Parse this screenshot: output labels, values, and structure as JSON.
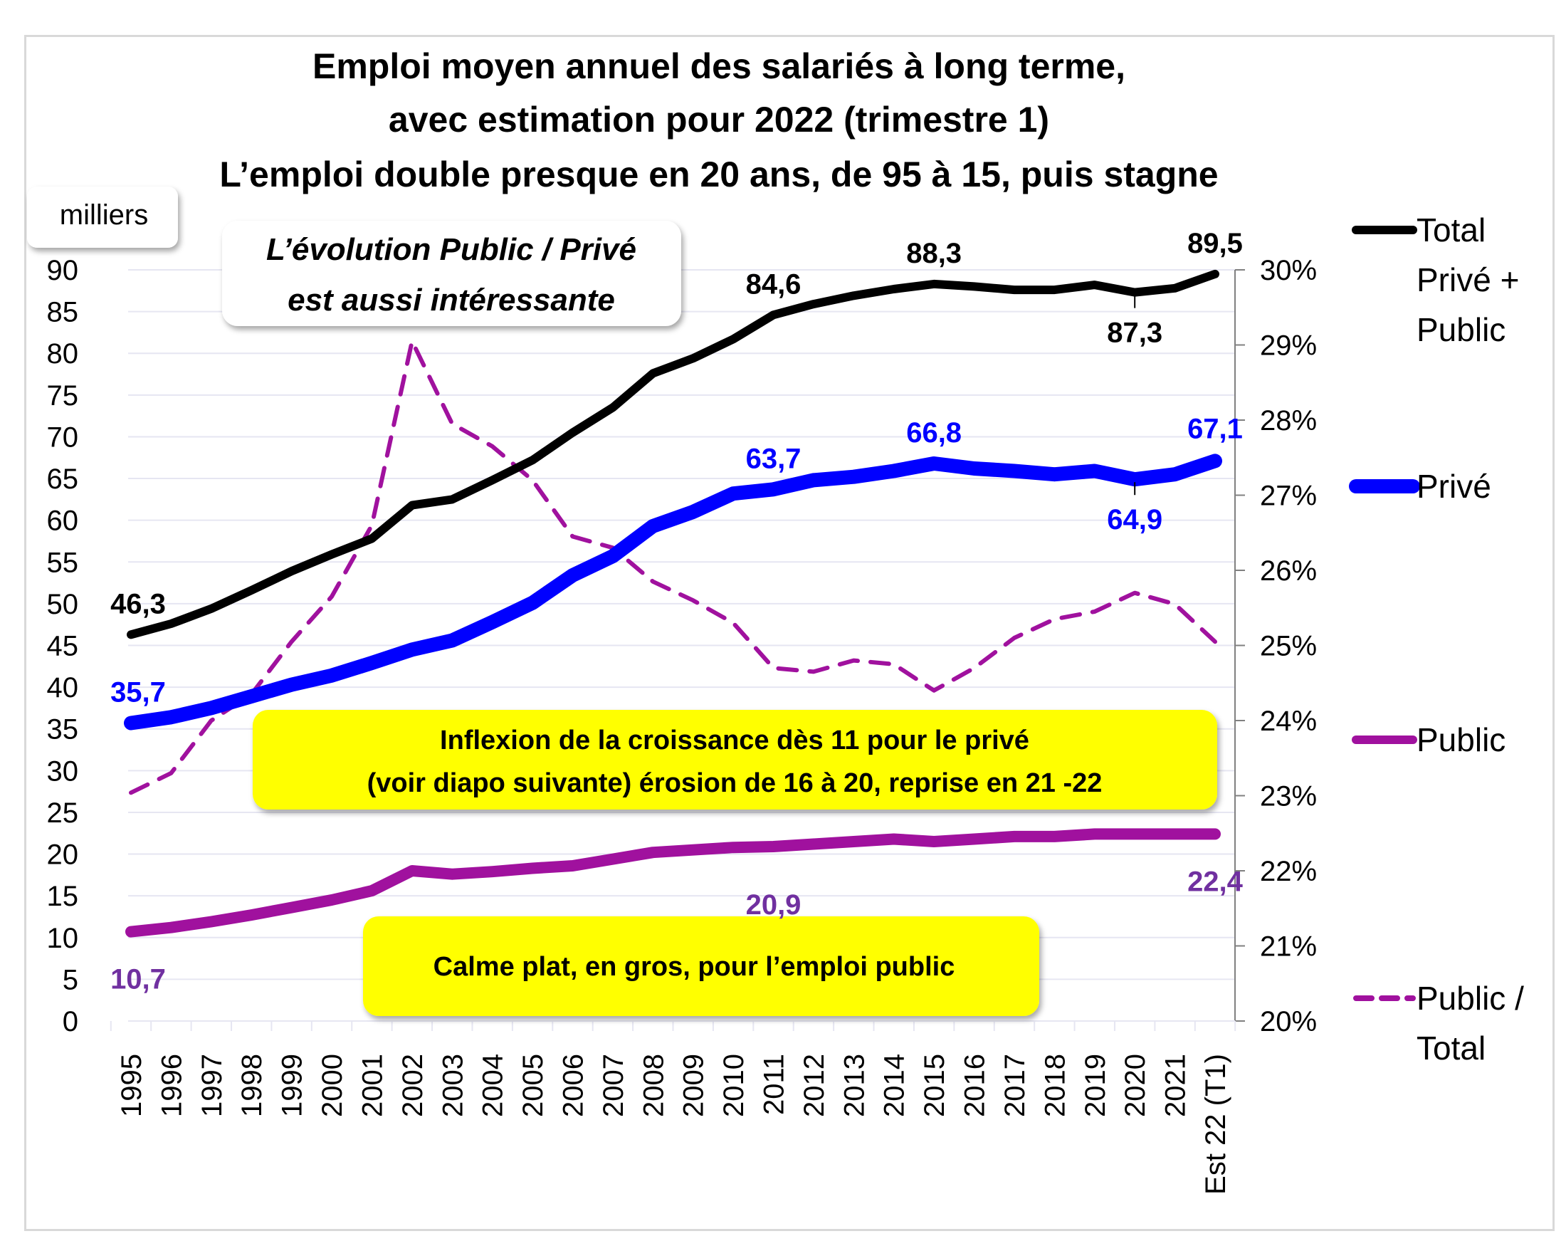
{
  "chart_data": {
    "type": "line",
    "title": [
      "Emploi moyen annuel des salariés à long terme,",
      "avec estimation pour 2022  (trimestre 1)",
      "L’emploi double presque en 20 ans, de 95  à  15, puis stagne"
    ],
    "y_unit_label": "milliers",
    "categories": [
      "1995",
      "1996",
      "1997",
      "1998",
      "1999",
      "2000",
      "2001",
      "2002",
      "2003",
      "2004",
      "2005",
      "2006",
      "2007",
      "2008",
      "2009",
      "2010",
      "2011",
      "2012",
      "2013",
      "2014",
      "2015",
      "2016",
      "2017",
      "2018",
      "2019",
      "2020",
      "2021",
      "Est 22 (T1)"
    ],
    "ylim": [
      0,
      90
    ],
    "y_ticks": [
      0,
      5,
      10,
      15,
      20,
      25,
      30,
      35,
      40,
      45,
      50,
      55,
      60,
      65,
      70,
      75,
      80,
      85,
      90
    ],
    "y2lim": [
      20,
      30
    ],
    "y2_ticks": [
      "20%",
      "21%",
      "22%",
      "23%",
      "24%",
      "25%",
      "26%",
      "27%",
      "28%",
      "29%",
      "30%"
    ],
    "grid": true,
    "legend_position": "right",
    "series": [
      {
        "name": "Total Privé + Public",
        "legend_lines": [
          "Total",
          "Privé +",
          "Public"
        ],
        "axis": "left",
        "color": "#000000",
        "style": "solid",
        "values": [
          46.3,
          47.6,
          49.4,
          51.6,
          53.9,
          55.9,
          57.8,
          61.8,
          62.5,
          64.8,
          67.2,
          70.5,
          73.5,
          77.6,
          79.4,
          81.7,
          84.6,
          85.9,
          86.9,
          87.7,
          88.3,
          88.0,
          87.6,
          87.6,
          88.2,
          87.3,
          87.8,
          89.5
        ]
      },
      {
        "name": "Privé",
        "legend_lines": [
          "Privé"
        ],
        "axis": "left",
        "color": "#0000ff",
        "style": "solid",
        "values": [
          35.7,
          36.4,
          37.5,
          38.9,
          40.3,
          41.4,
          42.9,
          44.5,
          45.6,
          47.8,
          50.1,
          53.4,
          55.7,
          59.3,
          61.0,
          63.2,
          63.7,
          64.8,
          65.2,
          65.9,
          66.8,
          66.2,
          65.9,
          65.5,
          65.9,
          64.9,
          65.5,
          67.1
        ]
      },
      {
        "name": "Public",
        "legend_lines": [
          "Public"
        ],
        "axis": "left",
        "color": "#a0119e",
        "style": "solid",
        "values": [
          10.7,
          11.2,
          11.9,
          12.7,
          13.6,
          14.5,
          15.6,
          18.0,
          17.6,
          17.9,
          18.3,
          18.6,
          19.4,
          20.2,
          20.5,
          20.8,
          20.9,
          21.2,
          21.5,
          21.8,
          21.5,
          21.8,
          22.1,
          22.1,
          22.4,
          22.4,
          22.4,
          22.4
        ]
      },
      {
        "name": "Public / Total",
        "legend_lines": [
          "Public /",
          "Total"
        ],
        "axis": "right",
        "unit": "%",
        "color": "#a0119e",
        "style": "dashed",
        "values": [
          23.04,
          23.3,
          24.0,
          24.35,
          25.05,
          25.65,
          26.6,
          29.05,
          27.95,
          27.65,
          27.2,
          26.45,
          26.3,
          25.85,
          25.6,
          25.3,
          24.7,
          24.65,
          24.8,
          24.75,
          24.4,
          24.7,
          25.1,
          25.35,
          25.45,
          25.7,
          25.55,
          25.05
        ]
      }
    ],
    "data_labels": [
      {
        "series": 0,
        "index": 0,
        "text": "46,3",
        "color": "#000000",
        "pos": "above"
      },
      {
        "series": 0,
        "index": 16,
        "text": "84,6",
        "color": "#000000",
        "pos": "above"
      },
      {
        "series": 0,
        "index": 20,
        "text": "88,3",
        "color": "#000000",
        "pos": "above"
      },
      {
        "series": 0,
        "index": 25,
        "text": "87,3",
        "color": "#000000",
        "pos": "below"
      },
      {
        "series": 0,
        "index": 27,
        "text": "89,5",
        "color": "#000000",
        "pos": "above"
      },
      {
        "series": 1,
        "index": 0,
        "text": "35,7",
        "color": "#0000ff",
        "pos": "above"
      },
      {
        "series": 1,
        "index": 16,
        "text": "63,7",
        "color": "#0000ff",
        "pos": "above"
      },
      {
        "series": 1,
        "index": 20,
        "text": "66,8",
        "color": "#0000ff",
        "pos": "above"
      },
      {
        "series": 1,
        "index": 25,
        "text": "64,9",
        "color": "#0000ff",
        "pos": "below"
      },
      {
        "series": 1,
        "index": 27,
        "text": "67,1",
        "color": "#0000ff",
        "pos": "above"
      },
      {
        "series": 2,
        "index": 0,
        "text": "10,7",
        "color": "#7030a0",
        "pos": "below"
      },
      {
        "series": 2,
        "index": 16,
        "text": "20,9",
        "color": "#7030a0",
        "pos": "below"
      },
      {
        "series": 2,
        "index": 27,
        "text": "22,4",
        "color": "#7030a0",
        "pos": "below"
      }
    ],
    "annotations": [
      {
        "id": "note-evolution",
        "lines": [
          "L’évolution Public / Privé",
          "est aussi intéressante"
        ],
        "style": "white-italic"
      },
      {
        "id": "note-inflexion",
        "lines": [
          "Inflexion de la croissance dès 11 pour le privé",
          "(voir diapo suivante) érosion de 16 à 20, reprise en 21 -22"
        ],
        "style": "yellow",
        "color": "#ffff00"
      },
      {
        "id": "note-calme",
        "lines": [
          "Calme plat, en gros, pour l’emploi public"
        ],
        "style": "yellow",
        "color": "#ffff00"
      }
    ]
  }
}
